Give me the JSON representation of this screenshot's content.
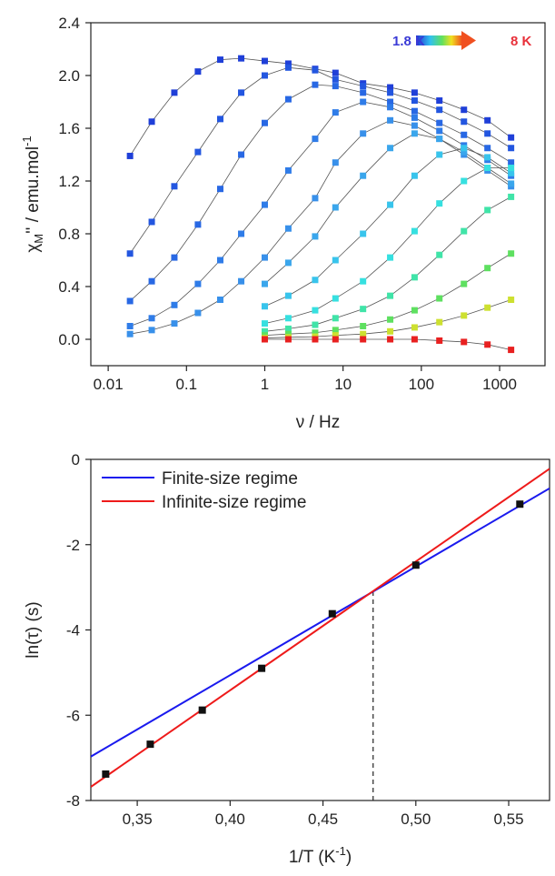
{
  "chart_data": [
    {
      "type": "line",
      "xscale": "log",
      "x_label": "ν / Hz",
      "y_label_parts": [
        "χ",
        "M",
        "'' / emu.mol",
        "-1"
      ],
      "annotations": [
        {
          "text": "1.8 K",
          "color": "#3a3ad6"
        },
        {
          "text": "8 K",
          "color": "#e8303a"
        }
      ],
      "xlim": [
        0.006,
        3800
      ],
      "ylim": [
        -0.2,
        2.4
      ],
      "xticks": [
        0.01,
        0.1,
        1,
        10,
        100,
        1000
      ],
      "yticks": [
        {
          "value": 0,
          "label": "0.0"
        },
        0.4,
        0.8,
        1.2,
        1.6,
        {
          "value": 2,
          "label": "2.0"
        },
        2.4
      ],
      "line_color": "#555555",
      "x": [
        0.019,
        0.036,
        0.07,
        0.14,
        0.27,
        0.5,
        1,
        2,
        4.4,
        8,
        18,
        40,
        82,
        170,
        350,
        700,
        1400
      ],
      "series": [
        {
          "color": "#1f3fd8",
          "values": [
            1.39,
            1.65,
            1.87,
            2.03,
            2.12,
            2.13,
            2.11,
            2.09,
            2.05,
            2.02,
            1.94,
            1.91,
            1.87,
            1.81,
            1.74,
            1.66,
            1.53
          ]
        },
        {
          "color": "#2356e0",
          "values": [
            0.65,
            0.89,
            1.16,
            1.42,
            1.67,
            1.87,
            2.0,
            2.06,
            2.04,
            1.97,
            1.92,
            1.87,
            1.81,
            1.74,
            1.65,
            1.56,
            1.45
          ]
        },
        {
          "color": "#2868e4",
          "values": [
            0.29,
            0.44,
            0.62,
            0.87,
            1.14,
            1.4,
            1.64,
            1.82,
            1.93,
            1.92,
            1.87,
            1.8,
            1.73,
            1.64,
            1.55,
            1.45,
            1.34
          ]
        },
        {
          "color": "#2f7ce8",
          "values": [
            0.1,
            0.16,
            0.26,
            0.42,
            0.6,
            0.8,
            1.02,
            1.28,
            1.52,
            1.72,
            1.8,
            1.76,
            1.68,
            1.58,
            1.47,
            1.36,
            1.24
          ]
        },
        {
          "color": "#3890ea",
          "values": [
            0.04,
            0.07,
            0.12,
            0.2,
            0.3,
            0.44,
            0.62,
            0.84,
            1.07,
            1.34,
            1.56,
            1.66,
            1.62,
            1.52,
            1.4,
            1.28,
            1.16
          ]
        },
        {
          "color": "#3aa6ec",
          "values": [
            null,
            null,
            null,
            null,
            null,
            null,
            0.42,
            0.58,
            0.78,
            1.0,
            1.24,
            1.45,
            1.56,
            1.52,
            1.42,
            1.3,
            1.18
          ]
        },
        {
          "color": "#38c4ec",
          "values": [
            null,
            null,
            null,
            null,
            null,
            null,
            0.25,
            0.33,
            0.45,
            0.6,
            0.8,
            1.02,
            1.24,
            1.4,
            1.45,
            1.38,
            1.26
          ]
        },
        {
          "color": "#36e0e0",
          "values": [
            null,
            null,
            null,
            null,
            null,
            null,
            0.12,
            0.16,
            0.22,
            0.31,
            0.44,
            0.62,
            0.82,
            1.03,
            1.2,
            1.3,
            1.3
          ]
        },
        {
          "color": "#40e4a8",
          "values": [
            null,
            null,
            null,
            null,
            null,
            null,
            0.06,
            0.08,
            0.11,
            0.16,
            0.23,
            0.33,
            0.47,
            0.64,
            0.82,
            0.98,
            1.08
          ]
        },
        {
          "color": "#5ee060",
          "values": [
            null,
            null,
            null,
            null,
            null,
            null,
            0.03,
            0.04,
            0.05,
            0.07,
            0.1,
            0.15,
            0.22,
            0.31,
            0.42,
            0.54,
            0.65
          ]
        },
        {
          "color": "#cde030",
          "values": [
            null,
            null,
            null,
            null,
            null,
            null,
            0.01,
            0.015,
            0.02,
            0.03,
            0.04,
            0.06,
            0.09,
            0.13,
            0.18,
            0.24,
            0.3
          ]
        },
        {
          "color": "#e82020",
          "values": [
            null,
            null,
            null,
            null,
            null,
            null,
            0.0,
            0.0,
            0.0,
            0.0,
            0.0,
            0.0,
            0.0,
            -0.01,
            -0.02,
            -0.04,
            -0.08
          ]
        }
      ]
    },
    {
      "type": "scatter",
      "x_label_parts": [
        "1/T (K",
        "-1",
        ")"
      ],
      "y_label": "ln(τ) (s)",
      "xlim": [
        0.325,
        0.572
      ],
      "ylim": [
        -8,
        0
      ],
      "xticks": [
        {
          "value": 0.35,
          "label": "0,35"
        },
        {
          "value": 0.4,
          "label": "0,40"
        },
        {
          "value": 0.45,
          "label": "0,45"
        },
        {
          "value": 0.5,
          "label": "0,50"
        },
        {
          "value": 0.55,
          "label": "0,55"
        }
      ],
      "yticks": [
        -8,
        -6,
        -4,
        -2,
        0
      ],
      "vline": {
        "x": 0.477,
        "y": [
          -8,
          -3.05
        ]
      },
      "series": [
        {
          "mode": "markers",
          "color": "#111111",
          "x": [
            0.333,
            0.357,
            0.385,
            0.417,
            0.455,
            0.5,
            0.556
          ],
          "values": [
            -7.38,
            -6.68,
            -5.88,
            -4.9,
            -3.62,
            -2.48,
            -1.05
          ]
        },
        {
          "mode": "line",
          "name": "Finite-size regime",
          "color": "#1a1aee",
          "x": [
            0.325,
            0.572
          ],
          "values": [
            -6.97,
            -0.68
          ]
        },
        {
          "mode": "line",
          "name": "Infinite-size regime",
          "color": "#ee1a1a",
          "x": [
            0.325,
            0.572
          ],
          "values": [
            -7.68,
            -0.22
          ]
        }
      ]
    }
  ]
}
